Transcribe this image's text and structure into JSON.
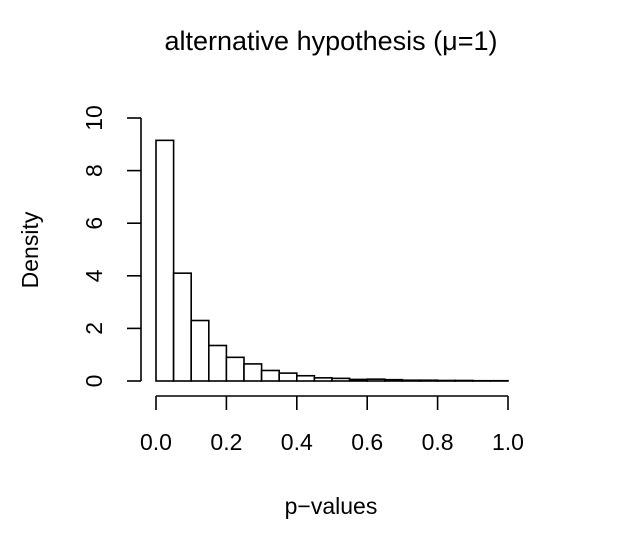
{
  "chart_data": {
    "type": "bar",
    "title": "alternative hypothesis (μ=1)",
    "xlabel": "p−values",
    "ylabel": "Density",
    "bin_width": 0.05,
    "bin_starts": [
      0.0,
      0.05,
      0.1,
      0.15,
      0.2,
      0.25,
      0.3,
      0.35,
      0.4,
      0.45,
      0.5,
      0.55,
      0.6,
      0.65,
      0.7,
      0.75,
      0.8,
      0.85,
      0.9,
      0.95
    ],
    "values": [
      9.15,
      4.1,
      2.3,
      1.35,
      0.9,
      0.65,
      0.4,
      0.3,
      0.2,
      0.12,
      0.1,
      0.06,
      0.07,
      0.05,
      0.03,
      0.03,
      0.02,
      0.02,
      0.01,
      0.01
    ],
    "xlim": [
      0,
      1
    ],
    "ylim": [
      0,
      10
    ],
    "x_ticks": [
      0.0,
      0.2,
      0.4,
      0.6,
      0.8,
      1.0
    ],
    "x_tick_labels": [
      "0.0",
      "0.2",
      "0.4",
      "0.6",
      "0.8",
      "1.0"
    ],
    "y_ticks": [
      0,
      2,
      4,
      6,
      8,
      10
    ],
    "y_tick_labels": [
      "0",
      "2",
      "4",
      "6",
      "8",
      "10"
    ],
    "grid": false
  }
}
